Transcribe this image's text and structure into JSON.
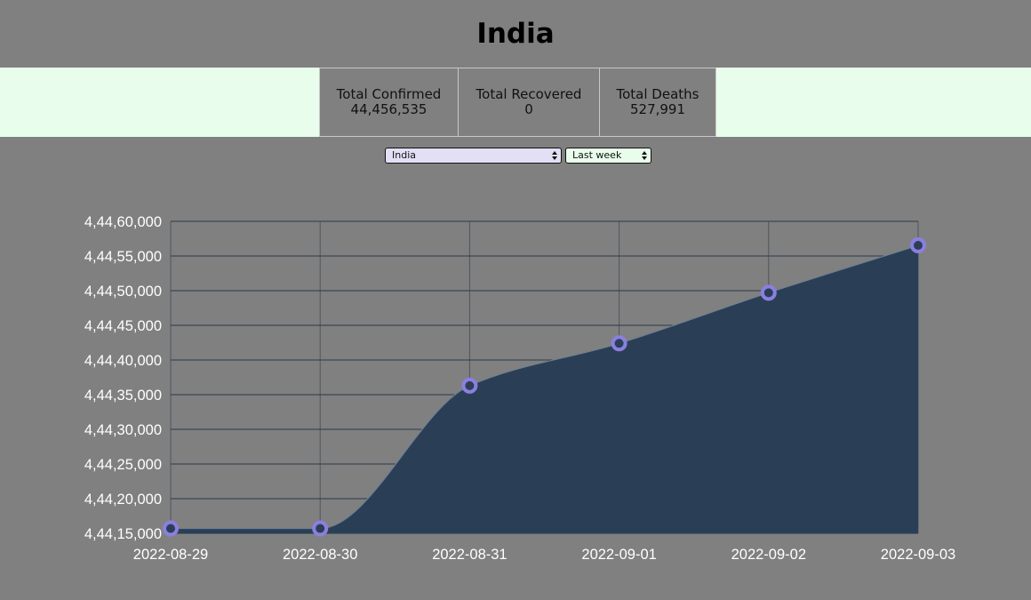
{
  "page": {
    "title": "India"
  },
  "stats": [
    {
      "label": "Total Confirmed",
      "value": "44,456,535"
    },
    {
      "label": "Total Recovered",
      "value": "0"
    },
    {
      "label": "Total Deaths",
      "value": "527,991"
    }
  ],
  "controls": {
    "country_selected": "India",
    "range_selected": "Last week"
  },
  "colors": {
    "background": "#808080",
    "stats_band": "#e9fdec",
    "area_fill": "#2a3f56",
    "point_stroke": "#8b7fe0",
    "grid": "#2a3a4a",
    "tick_text": "#ffffff"
  },
  "chart_data": {
    "type": "area",
    "x": [
      "2022-08-29",
      "2022-08-30",
      "2022-08-31",
      "2022-09-01",
      "2022-09-02",
      "2022-09-03"
    ],
    "series": [
      {
        "values": [
          44415700,
          44415700,
          44436300,
          44442400,
          44449700,
          44456535
        ]
      }
    ],
    "ylim": [
      44415000,
      44460000
    ],
    "yticks": [
      {
        "value": 44460000,
        "label": "4,44,60,000"
      },
      {
        "value": 44455000,
        "label": "4,44,55,000"
      },
      {
        "value": 44450000,
        "label": "4,44,50,000"
      },
      {
        "value": 44445000,
        "label": "4,44,45,000"
      },
      {
        "value": 44440000,
        "label": "4,44,40,000"
      },
      {
        "value": 44435000,
        "label": "4,44,35,000"
      },
      {
        "value": 44430000,
        "label": "4,44,30,000"
      },
      {
        "value": 44425000,
        "label": "4,44,25,000"
      },
      {
        "value": 44420000,
        "label": "4,44,20,000"
      },
      {
        "value": 44415000,
        "label": "4,44,15,000"
      }
    ],
    "grid": true,
    "legend": "none"
  }
}
